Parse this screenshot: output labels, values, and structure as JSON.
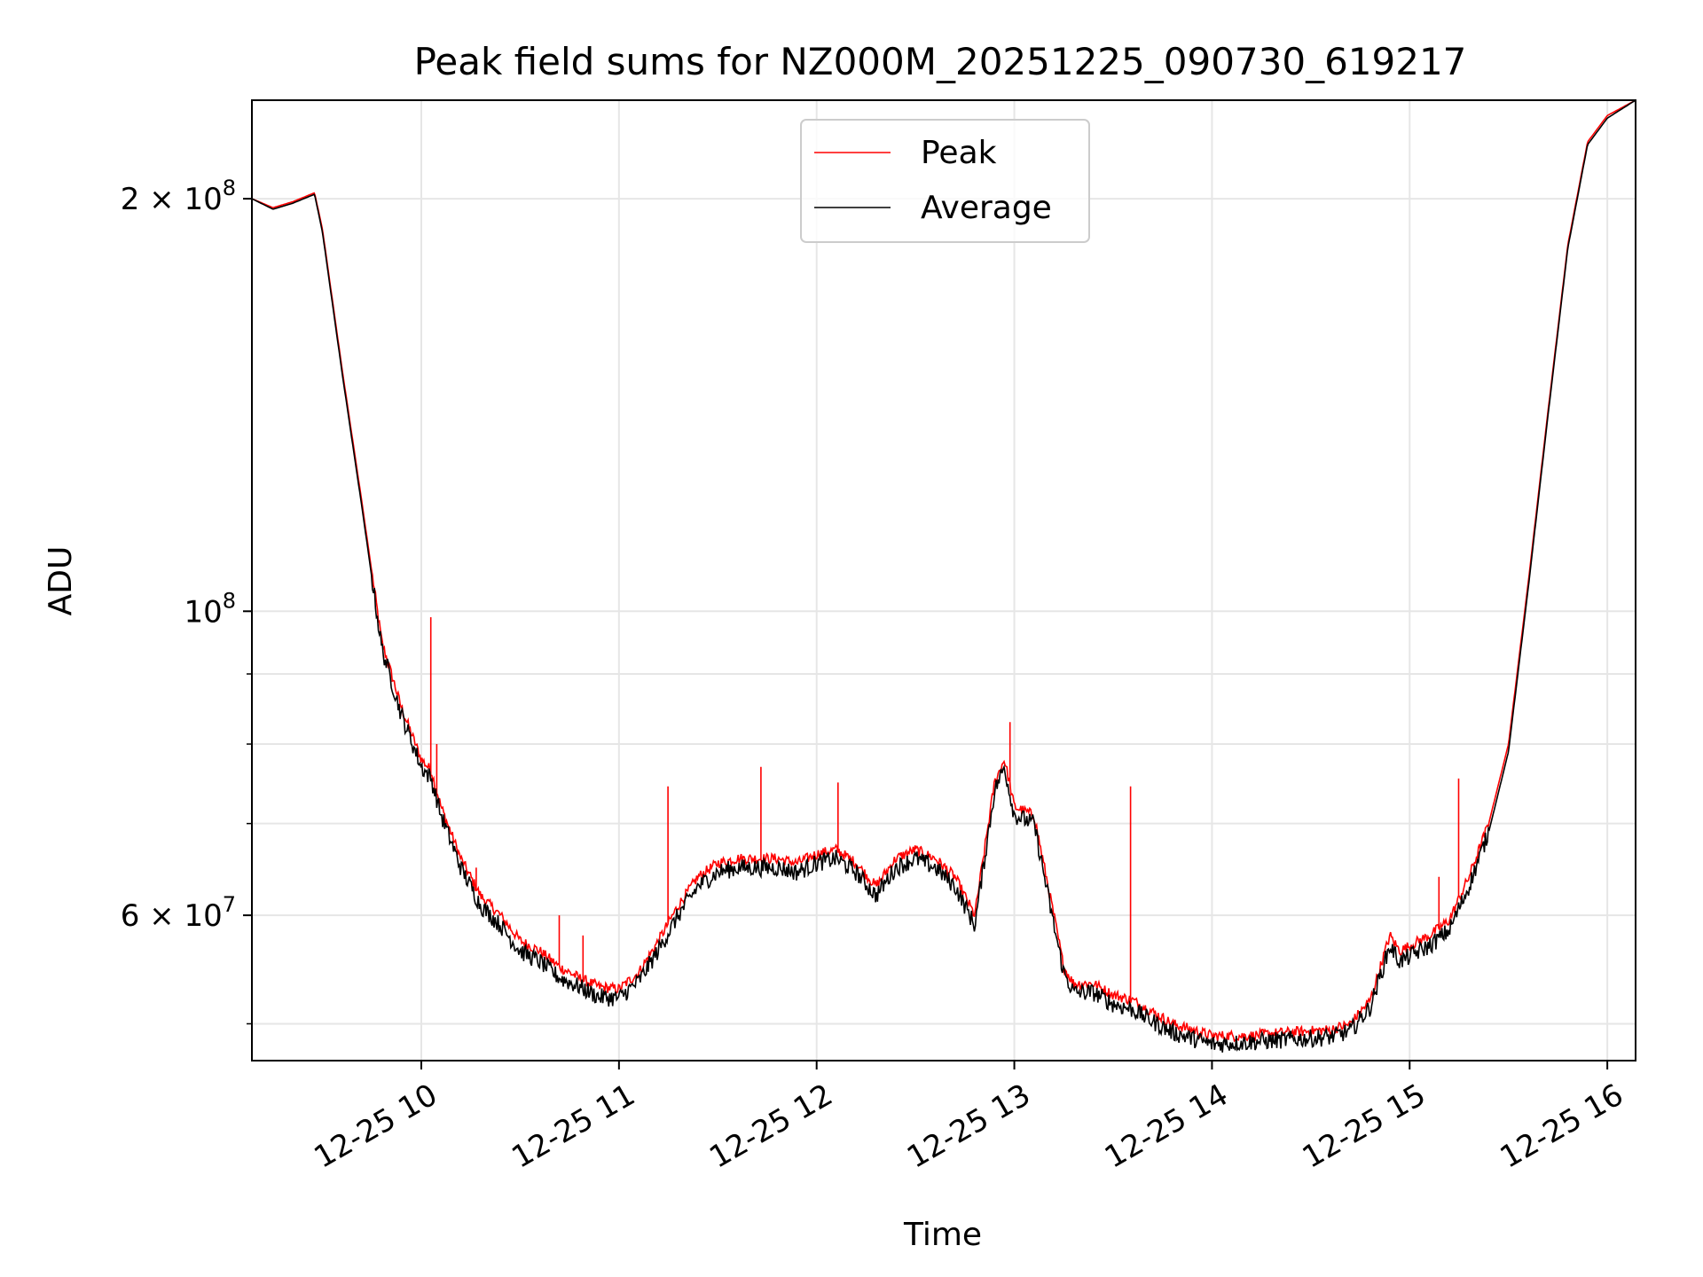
{
  "chart_data": {
    "type": "line",
    "title": "Peak field sums for NZ000M_20251225_090730_619217",
    "xlabel": "Time",
    "ylabel": "ADU",
    "yscale": "log",
    "grid": true,
    "legend_position": "upper center",
    "xlim_hours": [
      9.143,
      16.143
    ],
    "ylim": [
      47000000,
      236000000
    ],
    "x_ticks": [
      {
        "value": 10,
        "label": "12-25 10"
      },
      {
        "value": 11,
        "label": "12-25 11"
      },
      {
        "value": 12,
        "label": "12-25 12"
      },
      {
        "value": 13,
        "label": "12-25 13"
      },
      {
        "value": 14,
        "label": "12-25 14"
      },
      {
        "value": 15,
        "label": "12-25 15"
      },
      {
        "value": 16,
        "label": "12-25 16"
      }
    ],
    "y_major_ticks": [
      {
        "value": 100000000,
        "base": "10",
        "exp": "8",
        "mantissa": ""
      },
      {
        "value": 60000000,
        "base": "10",
        "exp": "7",
        "mantissa": "6"
      },
      {
        "value": 200000000,
        "base": "10",
        "exp": "8",
        "mantissa": "2"
      }
    ],
    "y_minor_ticks": [
      50000000,
      70000000,
      80000000,
      90000000
    ],
    "series": [
      {
        "name": "Peak",
        "color": "#ff0000",
        "points": [
          [
            9.143,
            200000000.0
          ],
          [
            9.25,
            197000000.0
          ],
          [
            9.35,
            199000000.0
          ],
          [
            9.46,
            202000000.0
          ],
          [
            9.5,
            190000000.0
          ],
          [
            9.6,
            150000000.0
          ],
          [
            9.7,
            120000000.0
          ],
          [
            9.8,
            95000000.0
          ],
          [
            9.9,
            85000000.0
          ],
          [
            10.0,
            78000000.0
          ],
          [
            10.05,
            76500000.0
          ],
          [
            10.1,
            72000000.0
          ],
          [
            10.2,
            66000000.0
          ],
          [
            10.3,
            62000000.0
          ],
          [
            10.4,
            60000000.0
          ],
          [
            10.5,
            57500000.0
          ],
          [
            10.6,
            56500000.0
          ],
          [
            10.7,
            55000000.0
          ],
          [
            10.8,
            54000000.0
          ],
          [
            10.9,
            53200000.0
          ],
          [
            11.0,
            53000000.0
          ],
          [
            11.1,
            54500000.0
          ],
          [
            11.2,
            57500000.0
          ],
          [
            11.3,
            61000000.0
          ],
          [
            11.4,
            64000000.0
          ],
          [
            11.5,
            65500000.0
          ],
          [
            11.6,
            66000000.0
          ],
          [
            11.7,
            66000000.0
          ],
          [
            11.8,
            66000000.0
          ],
          [
            11.9,
            65500000.0
          ],
          [
            12.0,
            66500000.0
          ],
          [
            12.1,
            67000000.0
          ],
          [
            12.2,
            65500000.0
          ],
          [
            12.3,
            63000000.0
          ],
          [
            12.4,
            66000000.0
          ],
          [
            12.5,
            67000000.0
          ],
          [
            12.6,
            66000000.0
          ],
          [
            12.7,
            64000000.0
          ],
          [
            12.8,
            60000000.0
          ],
          [
            12.9,
            75000000.0
          ],
          [
            12.95,
            78000000.0
          ],
          [
            13.0,
            72000000.0
          ],
          [
            13.1,
            71000000.0
          ],
          [
            13.2,
            60000000.0
          ],
          [
            13.25,
            55000000.0
          ],
          [
            13.3,
            53500000.0
          ],
          [
            13.4,
            53500000.0
          ],
          [
            13.5,
            52500000.0
          ],
          [
            13.6,
            52000000.0
          ],
          [
            13.7,
            51000000.0
          ],
          [
            13.8,
            50000000.0
          ],
          [
            13.9,
            49500000.0
          ],
          [
            14.0,
            49000000.0
          ],
          [
            14.1,
            49000000.0
          ],
          [
            14.2,
            49000000.0
          ],
          [
            14.3,
            49200000.0
          ],
          [
            14.4,
            49300000.0
          ],
          [
            14.5,
            49400000.0
          ],
          [
            14.6,
            49500000.0
          ],
          [
            14.7,
            50000000.0
          ],
          [
            14.8,
            52000000.0
          ],
          [
            14.9,
            58000000.0
          ],
          [
            14.95,
            56500000.0
          ],
          [
            15.0,
            57000000.0
          ],
          [
            15.1,
            58000000.0
          ],
          [
            15.2,
            59500000.0
          ],
          [
            15.3,
            64000000.0
          ],
          [
            15.4,
            70000000.0
          ],
          [
            15.5,
            80000000.0
          ],
          [
            15.6,
            105000000.0
          ],
          [
            15.7,
            140000000.0
          ],
          [
            15.8,
            185000000.0
          ],
          [
            15.9,
            220000000.0
          ],
          [
            16.0,
            230000000.0
          ],
          [
            16.143,
            236000000.0
          ]
        ],
        "spikes": [
          [
            10.05,
            99000000.0
          ],
          [
            10.08,
            80000000.0
          ],
          [
            10.28,
            65000000.0
          ],
          [
            10.7,
            60000000.0
          ],
          [
            10.82,
            58000000.0
          ],
          [
            11.25,
            74500000.0
          ],
          [
            11.72,
            77000000.0
          ],
          [
            12.11,
            75000000.0
          ],
          [
            12.98,
            83000000.0
          ],
          [
            13.59,
            74500000.0
          ],
          [
            15.15,
            64000000.0
          ],
          [
            15.25,
            75500000.0
          ]
        ]
      },
      {
        "name": "Average",
        "color": "#000000",
        "points": [
          [
            9.143,
            200000000.0
          ],
          [
            9.25,
            196500000.0
          ],
          [
            9.35,
            198500000.0
          ],
          [
            9.46,
            201500000.0
          ],
          [
            9.5,
            189000000.0
          ],
          [
            9.6,
            149000000.0
          ],
          [
            9.7,
            119000000.0
          ],
          [
            9.8,
            94000000.0
          ],
          [
            9.9,
            84000000.0
          ],
          [
            10.0,
            77000000.0
          ],
          [
            10.05,
            75500000.0
          ],
          [
            10.1,
            71000000.0
          ],
          [
            10.2,
            65000000.0
          ],
          [
            10.3,
            61000000.0
          ],
          [
            10.4,
            59000000.0
          ],
          [
            10.5,
            56500000.0
          ],
          [
            10.6,
            55500000.0
          ],
          [
            10.7,
            54000000.0
          ],
          [
            10.8,
            53200000.0
          ],
          [
            10.9,
            52300000.0
          ],
          [
            11.0,
            52200000.0
          ],
          [
            11.1,
            53700000.0
          ],
          [
            11.2,
            56600000.0
          ],
          [
            11.3,
            60000000.0
          ],
          [
            11.4,
            63000000.0
          ],
          [
            11.5,
            64500000.0
          ],
          [
            11.6,
            65000000.0
          ],
          [
            11.7,
            65000000.0
          ],
          [
            11.8,
            65000000.0
          ],
          [
            11.9,
            64500000.0
          ],
          [
            12.0,
            65500000.0
          ],
          [
            12.1,
            66000000.0
          ],
          [
            12.2,
            64500000.0
          ],
          [
            12.3,
            62000000.0
          ],
          [
            12.4,
            65000000.0
          ],
          [
            12.5,
            66000000.0
          ],
          [
            12.6,
            65000000.0
          ],
          [
            12.7,
            63000000.0
          ],
          [
            12.8,
            59000000.0
          ],
          [
            12.9,
            74000000.0
          ],
          [
            12.95,
            77000000.0
          ],
          [
            13.0,
            71000000.0
          ],
          [
            13.1,
            70000000.0
          ],
          [
            13.2,
            59000000.0
          ],
          [
            13.25,
            54500000.0
          ],
          [
            13.3,
            52700000.0
          ],
          [
            13.4,
            52700000.0
          ],
          [
            13.5,
            51700000.0
          ],
          [
            13.6,
            51200000.0
          ],
          [
            13.7,
            50200000.0
          ],
          [
            13.8,
            49300000.0
          ],
          [
            13.9,
            48800000.0
          ],
          [
            14.0,
            48300000.0
          ],
          [
            14.1,
            48400000.0
          ],
          [
            14.2,
            48500000.0
          ],
          [
            14.3,
            48600000.0
          ],
          [
            14.4,
            48700000.0
          ],
          [
            14.5,
            48800000.0
          ],
          [
            14.6,
            48900000.0
          ],
          [
            14.7,
            49400000.0
          ],
          [
            14.8,
            51400000.0
          ],
          [
            14.9,
            57000000.0
          ],
          [
            14.95,
            55500000.0
          ],
          [
            15.0,
            56000000.0
          ],
          [
            15.1,
            57000000.0
          ],
          [
            15.2,
            58500000.0
          ],
          [
            15.3,
            63000000.0
          ],
          [
            15.4,
            69000000.0
          ],
          [
            15.5,
            79000000.0
          ],
          [
            15.6,
            104000000.0
          ],
          [
            15.7,
            139000000.0
          ],
          [
            15.8,
            184000000.0
          ],
          [
            15.9,
            219000000.0
          ],
          [
            16.0,
            229000000.0
          ],
          [
            16.143,
            236000000.0
          ]
        ]
      }
    ]
  }
}
